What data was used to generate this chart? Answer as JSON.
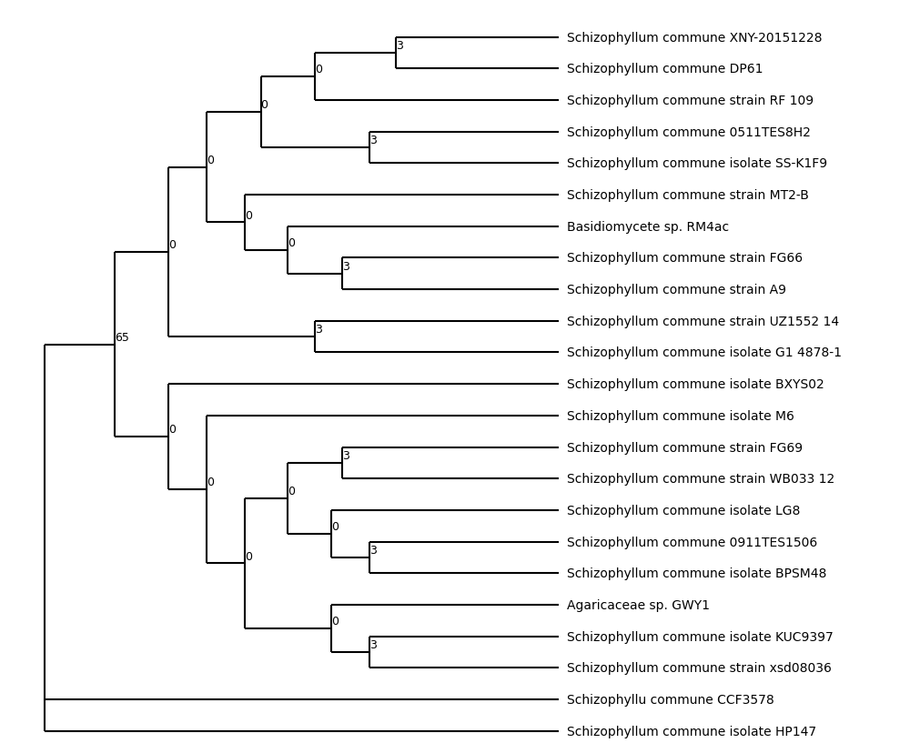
{
  "taxa": [
    "Schizophyllum commune XNY-20151228",
    "Schizophyllum commune DP61",
    "Schizophyllum commune strain RF 109",
    "Schizophyllum commune 0511TES8H2",
    "Schizophyllum commune isolate SS-K1F9",
    "Schizophyllum commune strain MT2-B",
    "Basidiomycete sp. RM4ac",
    "Schizophyllum commune strain FG66",
    "Schizophyllum commune strain A9",
    "Schizophyllum commune strain UZ1552 14",
    "Schizophyllum commune isolate G1 4878-1",
    "Schizophyllum commune isolate BXYS02",
    "Schizophyllum commune isolate M6",
    "Schizophyllum commune strain FG69",
    "Schizophyllum commune strain WB033 12",
    "Schizophyllum commune isolate LG8",
    "Schizophyllum commune 0911TES1506",
    "Schizophyllum commune isolate BPSM48",
    "Agaricaceae sp. GWY1",
    "Schizophyllum commune isolate KUC9397",
    "Schizophyllum commune strain xsd08036",
    "Schizophyllu commune CCF3578",
    "Schizophyllum commune isolate HP147"
  ],
  "line_color": "#000000",
  "line_width": 1.5,
  "font_size": 10,
  "background_color": "#ffffff",
  "figsize": [
    10.0,
    8.29
  ]
}
